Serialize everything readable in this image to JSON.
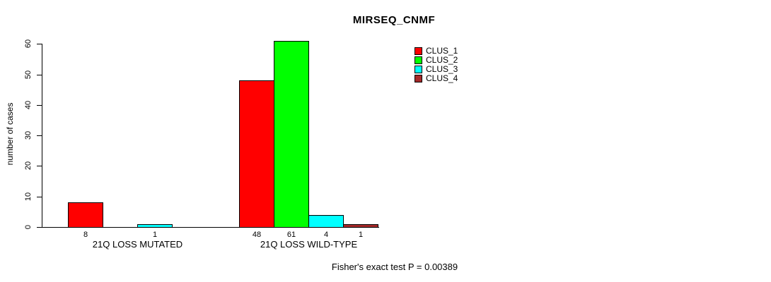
{
  "chart_data": {
    "type": "bar",
    "title": "MIRSEQ_CNMF",
    "ylabel": "number of cases",
    "xlabel": "",
    "ylim": [
      0,
      60
    ],
    "yticks": [
      0,
      10,
      20,
      30,
      40,
      50,
      60
    ],
    "grid": false,
    "legend_position": "top-right",
    "categories": [
      "21Q LOSS MUTATED",
      "21Q LOSS WILD-TYPE"
    ],
    "series": [
      {
        "name": "CLUS_1",
        "color": "#ff0000",
        "values": [
          8,
          48
        ]
      },
      {
        "name": "CLUS_2",
        "color": "#00ff00",
        "values": [
          0,
          61
        ]
      },
      {
        "name": "CLUS_3",
        "color": "#00ffff",
        "values": [
          1,
          4
        ]
      },
      {
        "name": "CLUS_4",
        "color": "#a52a2a",
        "values": [
          0,
          1
        ]
      }
    ],
    "bar_border_color": "#000000",
    "zero_value_labels_hidden": true,
    "annotation": "Fisher's exact test P = 0.00389"
  }
}
